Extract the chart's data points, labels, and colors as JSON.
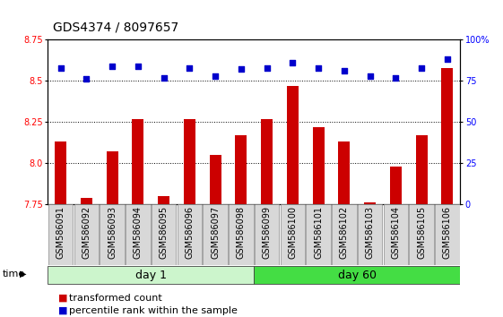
{
  "title": "GDS4374 / 8097657",
  "samples": [
    "GSM586091",
    "GSM586092",
    "GSM586093",
    "GSM586094",
    "GSM586095",
    "GSM586096",
    "GSM586097",
    "GSM586098",
    "GSM586099",
    "GSM586100",
    "GSM586101",
    "GSM586102",
    "GSM586103",
    "GSM586104",
    "GSM586105",
    "GSM586106"
  ],
  "transformed_count": [
    8.13,
    7.79,
    8.07,
    8.27,
    7.8,
    8.27,
    8.05,
    8.17,
    8.27,
    8.47,
    8.22,
    8.13,
    7.76,
    7.98,
    8.17,
    8.58
  ],
  "percentile_rank": [
    83,
    76,
    84,
    84,
    77,
    83,
    78,
    82,
    83,
    86,
    83,
    81,
    78,
    77,
    83,
    88
  ],
  "ylim_left": [
    7.75,
    8.75
  ],
  "ylim_right": [
    0,
    100
  ],
  "yticks_left": [
    7.75,
    8.0,
    8.25,
    8.5,
    8.75
  ],
  "yticks_right": [
    0,
    25,
    50,
    75,
    100
  ],
  "bar_color": "#cc0000",
  "dot_color": "#0000cc",
  "day1_color": "#ccf5cc",
  "day60_color": "#44dd44",
  "day1_samples": 8,
  "day60_samples": 8,
  "xlabel_time": "time",
  "group_labels": [
    "day 1",
    "day 60"
  ],
  "legend_bar_label": "transformed count",
  "legend_dot_label": "percentile rank within the sample",
  "title_fontsize": 10,
  "tick_fontsize": 7,
  "label_fontsize": 7,
  "group_fontsize": 9,
  "legend_fontsize": 8
}
